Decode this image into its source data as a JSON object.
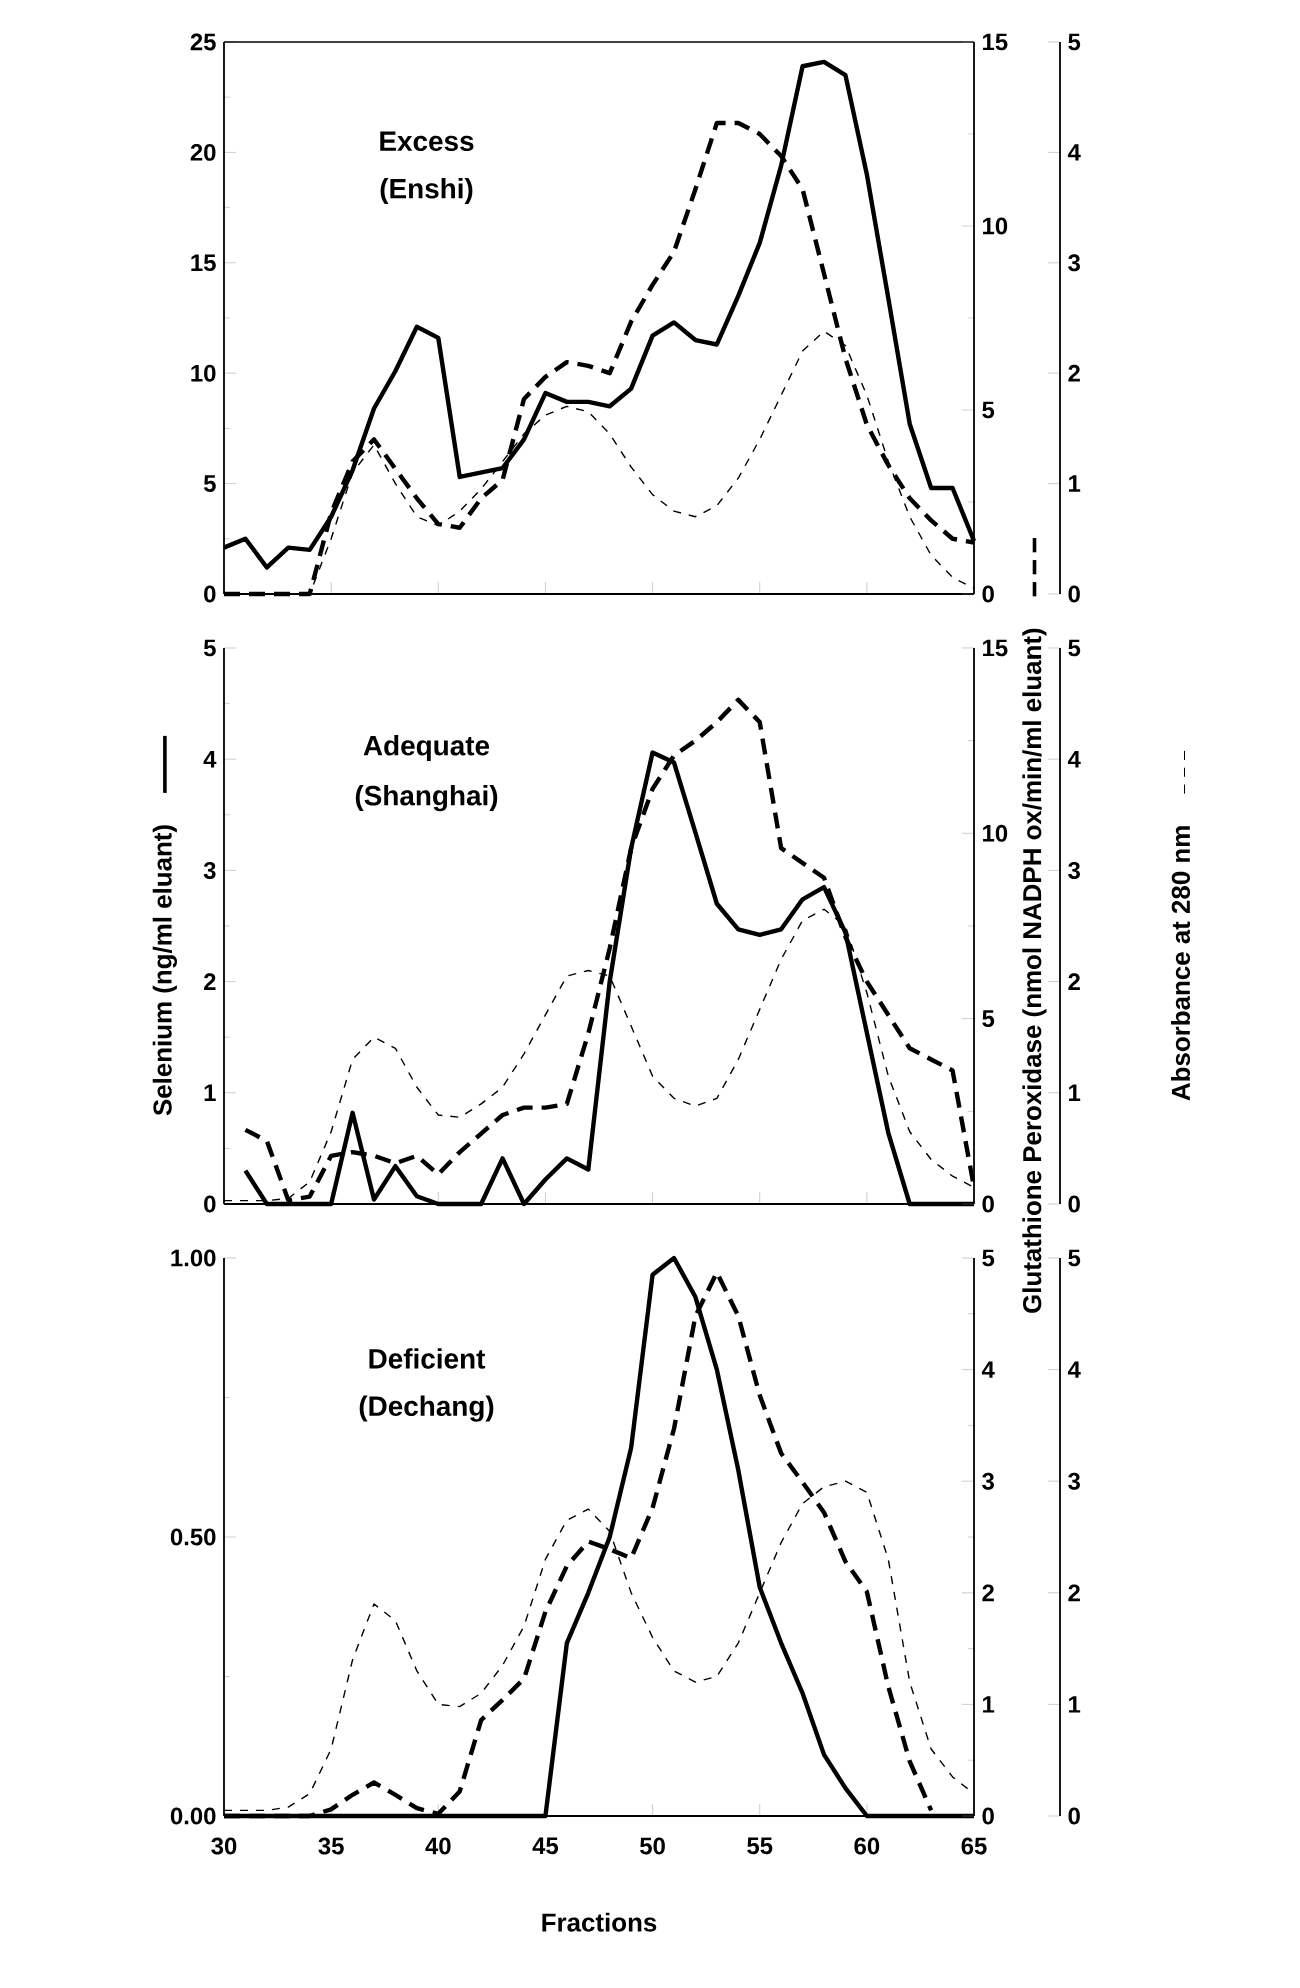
{
  "chart_data": [
    {
      "type": "line",
      "annotations": [
        "Excess",
        "(Enshi)"
      ],
      "x": [
        30,
        31,
        32,
        33,
        34,
        35,
        36,
        37,
        38,
        39,
        40,
        41,
        42,
        43,
        44,
        45,
        46,
        47,
        48,
        49,
        50,
        51,
        52,
        53,
        54,
        55,
        56,
        57,
        58,
        59,
        60,
        61,
        62,
        63,
        64,
        65
      ],
      "xlim": [
        30,
        65
      ],
      "xticks": [
        30,
        35,
        40,
        45,
        50,
        55,
        60,
        65
      ],
      "tick_labels": "y",
      "ylim": [
        0,
        25
      ],
      "yticks": [
        0,
        5,
        10,
        15,
        20,
        25
      ],
      "y2lim": [
        0,
        15
      ],
      "y2ticks": [
        0,
        5,
        10,
        15
      ],
      "y3lim": [
        0,
        5
      ],
      "y3ticks": [
        0,
        1,
        2,
        3,
        4,
        5
      ],
      "series": [
        {
          "color": "#000000",
          "line_style": "solid",
          "values": [
            2.1,
            2.5,
            1.2,
            2.1,
            2.0,
            3.5,
            5.6,
            8.4,
            10.1,
            12.1,
            11.6,
            5.3,
            5.5,
            5.7,
            7.0,
            9.1,
            8.7,
            8.7,
            8.5,
            9.3,
            11.7,
            12.3,
            11.5,
            11.3,
            13.5,
            15.9,
            19.4,
            23.9,
            24.1,
            23.5,
            19.0,
            13.4,
            7.7,
            4.8,
            4.8,
            2.4
          ]
        },
        {
          "color": "#000000",
          "line_style": "dashed",
          "axis": "y2",
          "values": [
            0,
            0,
            0,
            0,
            0,
            2.2,
            3.6,
            4.2,
            3.4,
            2.6,
            1.9,
            1.8,
            2.6,
            3.1,
            5.3,
            5.9,
            6.3,
            6.2,
            6.0,
            7.4,
            8.4,
            9.3,
            11.0,
            12.8,
            12.8,
            12.5,
            11.9,
            11.0,
            8.7,
            6.4,
            4.6,
            3.5,
            2.6,
            2.0,
            1.5,
            1.4
          ]
        },
        {
          "color": "#000000",
          "line_style": "dashed",
          "axis": "y3",
          "values": [
            0,
            0,
            0,
            0,
            0,
            0.5,
            1.1,
            1.35,
            1.0,
            0.7,
            0.62,
            0.75,
            0.95,
            1.2,
            1.45,
            1.62,
            1.7,
            1.65,
            1.45,
            1.15,
            0.9,
            0.75,
            0.7,
            0.8,
            1.05,
            1.4,
            1.8,
            2.2,
            2.38,
            2.25,
            1.8,
            1.2,
            0.7,
            0.35,
            0.15,
            0.05
          ]
        }
      ]
    },
    {
      "type": "line",
      "annotations": [
        "Adequate",
        "(Shanghai)"
      ],
      "ylabel": "Selenium (ng/ml eluant)",
      "y2label": "Glutathione Peroxidase (nmol NADPH ox/min/ml eluant)",
      "y3label": "Absorbance at 280 nm",
      "x": [
        30,
        31,
        32,
        33,
        34,
        35,
        36,
        37,
        38,
        39,
        40,
        41,
        42,
        43,
        44,
        45,
        46,
        47,
        48,
        49,
        50,
        51,
        52,
        53,
        54,
        55,
        56,
        57,
        58,
        59,
        60,
        61,
        62,
        63,
        64,
        65
      ],
      "xlim": [
        30,
        65
      ],
      "xticks": [
        30,
        35,
        40,
        45,
        50,
        55,
        60,
        65
      ],
      "tick_labels": "y",
      "ylim": [
        0,
        5
      ],
      "yticks": [
        0,
        1,
        2,
        3,
        4,
        5
      ],
      "y2lim": [
        0,
        15
      ],
      "y2ticks": [
        0,
        5,
        10,
        15
      ],
      "y3lim": [
        0,
        5
      ],
      "y3ticks": [
        0,
        1,
        2,
        3,
        4,
        5
      ],
      "series": [
        {
          "color": "#000000",
          "line_style": "solid",
          "values": [
            null,
            0.3,
            0,
            0,
            0,
            0,
            0.82,
            0.04,
            0.34,
            0.07,
            0,
            0,
            0,
            0.41,
            0,
            0.22,
            0.41,
            0.31,
            2.0,
            3.2,
            4.06,
            3.97,
            3.34,
            2.7,
            2.47,
            2.42,
            2.47,
            2.74,
            2.85,
            2.44,
            1.54,
            0.64,
            0,
            0,
            0,
            0
          ]
        },
        {
          "color": "#000000",
          "line_style": "dashed",
          "axis": "y2",
          "values": [
            null,
            2.0,
            1.7,
            0.1,
            0.2,
            1.3,
            1.4,
            1.3,
            1.1,
            1.3,
            0.8,
            1.4,
            1.9,
            2.4,
            2.6,
            2.6,
            2.7,
            4.6,
            6.9,
            9.6,
            11.2,
            12.1,
            12.5,
            13.0,
            13.6,
            13.0,
            9.6,
            9.2,
            8.8,
            7.2,
            6.0,
            5.1,
            4.2,
            3.9,
            3.6,
            0.45
          ]
        },
        {
          "color": "#000000",
          "line_style": "dashed",
          "axis": "y3",
          "values": [
            0.03,
            0.03,
            0.03,
            0.05,
            0.2,
            0.65,
            1.3,
            1.5,
            1.4,
            1.05,
            0.8,
            0.78,
            0.9,
            1.05,
            1.35,
            1.7,
            2.05,
            2.1,
            2.05,
            1.6,
            1.15,
            0.95,
            0.88,
            0.95,
            1.3,
            1.75,
            2.2,
            2.55,
            2.65,
            2.5,
            1.9,
            1.15,
            0.65,
            0.4,
            0.25,
            0.15
          ]
        }
      ]
    },
    {
      "type": "line",
      "annotations": [
        "Deficient",
        "(Dechang)"
      ],
      "xlabel": "Fractions",
      "x": [
        30,
        31,
        32,
        33,
        34,
        35,
        36,
        37,
        38,
        39,
        40,
        41,
        42,
        43,
        44,
        45,
        46,
        47,
        48,
        49,
        50,
        51,
        52,
        53,
        54,
        55,
        56,
        57,
        58,
        59,
        60,
        61,
        62,
        63,
        64,
        65
      ],
      "xlim": [
        30,
        65
      ],
      "xticks": [
        30,
        35,
        40,
        45,
        50,
        55,
        60,
        65
      ],
      "ylim": [
        0,
        1
      ],
      "yticks": [
        {
          "value": 0,
          "label": "0.00"
        },
        {
          "value": 0.5,
          "label": "0.50"
        },
        {
          "value": 1,
          "label": "1.00"
        }
      ],
      "y2lim": [
        0,
        5
      ],
      "y2ticks": [
        0,
        1,
        2,
        3,
        4,
        5
      ],
      "y3lim": [
        0,
        5
      ],
      "y3ticks": [
        0,
        1,
        2,
        3,
        4,
        5
      ],
      "series": [
        {
          "color": "#000000",
          "line_style": "solid",
          "values": [
            0,
            0,
            0,
            0,
            0,
            0,
            0,
            0,
            0,
            0,
            0,
            0,
            0,
            0,
            0,
            0,
            0.31,
            0.4,
            0.5,
            0.66,
            0.97,
            1.0,
            0.93,
            0.8,
            0.62,
            0.41,
            0.31,
            0.22,
            0.11,
            0.05,
            0,
            0,
            0,
            0,
            0,
            0
          ]
        },
        {
          "color": "#000000",
          "line_style": "dashed",
          "axis": "y2",
          "values": [
            0,
            0,
            0,
            0,
            0,
            0.06,
            0.19,
            0.3,
            0.19,
            0.07,
            0.02,
            0.22,
            0.86,
            1.04,
            1.23,
            1.83,
            2.24,
            2.46,
            2.39,
            2.31,
            2.76,
            3.47,
            4.48,
            4.87,
            4.48,
            3.77,
            3.25,
            2.99,
            2.72,
            2.28,
            2.01,
            1.16,
            0.49,
            0.05,
            null,
            null
          ]
        },
        {
          "color": "#000000",
          "line_style": "dashed",
          "axis": "y3",
          "values": [
            0.05,
            0.05,
            0.05,
            0.08,
            0.2,
            0.6,
            1.4,
            1.9,
            1.75,
            1.3,
            1.0,
            0.98,
            1.1,
            1.35,
            1.7,
            2.3,
            2.65,
            2.75,
            2.55,
            2.0,
            1.6,
            1.3,
            1.2,
            1.25,
            1.55,
            2.0,
            2.45,
            2.8,
            2.95,
            3.0,
            2.9,
            2.3,
            1.2,
            0.6,
            0.35,
            0.2
          ]
        }
      ]
    }
  ]
}
